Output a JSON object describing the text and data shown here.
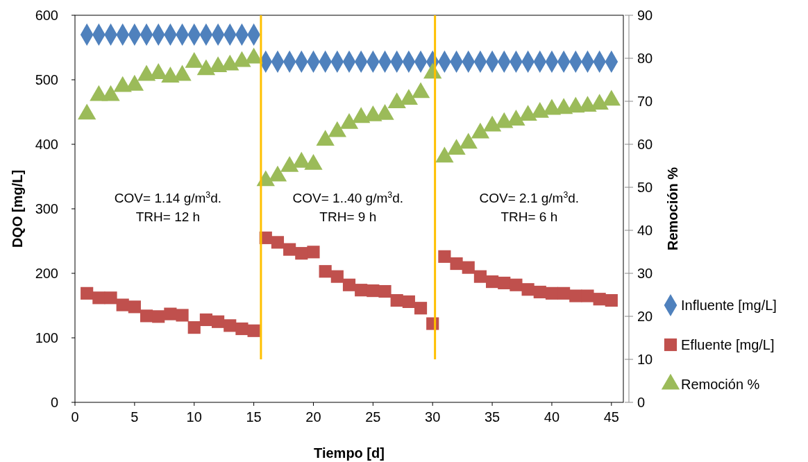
{
  "chart_data": {
    "type": "scatter",
    "xlabel": "Tiempo [d]",
    "ylabel": "DQO [mg/L]",
    "y2label": "Remoción %",
    "x": [
      1,
      2,
      3,
      4,
      5,
      6,
      7,
      8,
      9,
      10,
      11,
      12,
      13,
      14,
      15,
      16,
      17,
      18,
      19,
      20,
      21,
      22,
      23,
      24,
      25,
      26,
      27,
      28,
      29,
      30,
      31,
      32,
      33,
      34,
      35,
      36,
      37,
      38,
      39,
      40,
      41,
      42,
      43,
      44,
      45
    ],
    "series": [
      {
        "name": "Influente [mg/L]",
        "color": "#4f81bd",
        "marker": "diamond",
        "values": [
          570,
          570,
          570,
          570,
          570,
          570,
          570,
          570,
          570,
          570,
          570,
          570,
          570,
          570,
          570,
          528,
          528,
          528,
          528,
          528,
          528,
          528,
          528,
          528,
          528,
          528,
          528,
          528,
          528,
          528,
          528,
          528,
          528,
          528,
          528,
          528,
          528,
          528,
          528,
          528,
          528,
          528,
          528,
          528,
          528
        ]
      },
      {
        "name": "Efluente [mg/L]",
        "color": "#c0504d",
        "marker": "square",
        "values": [
          169,
          162,
          162,
          151,
          148,
          134,
          133,
          137,
          135,
          116,
          128,
          125,
          119,
          114,
          111,
          255,
          248,
          237,
          231,
          233,
          203,
          195,
          182,
          174,
          173,
          172,
          158,
          156,
          146,
          122,
          226,
          215,
          209,
          195,
          187,
          185,
          182,
          175,
          171,
          169,
          169,
          165,
          165,
          160,
          158
        ]
      },
      {
        "name": "Remoción %",
        "color": "#9bbb59",
        "marker": "triangle",
        "axis": "y2",
        "values": [
          67,
          71.3,
          71.3,
          73.4,
          73.7,
          76,
          76.4,
          75.6,
          76,
          79,
          77.3,
          78,
          78.4,
          79.2,
          80,
          51.5,
          52.6,
          54.8,
          55.8,
          55.3,
          60.9,
          62.9,
          64.8,
          66.2,
          66.6,
          66.9,
          69.6,
          70.4,
          72,
          76.5,
          57,
          58.8,
          60.2,
          62.6,
          64.2,
          65,
          65.6,
          66.7,
          67.4,
          68.1,
          68.3,
          68.6,
          68.8,
          69.3,
          70.2
        ]
      }
    ],
    "xlim": [
      0,
      46
    ],
    "xticks": [
      0,
      5,
      10,
      15,
      20,
      25,
      30,
      35,
      40,
      45
    ],
    "ylim": [
      0,
      600
    ],
    "yticks": [
      0,
      100,
      200,
      300,
      400,
      500,
      600
    ],
    "y2lim": [
      0,
      90
    ],
    "y2ticks": [
      0,
      10,
      20,
      30,
      40,
      50,
      60,
      70,
      80,
      90
    ],
    "ref_lines": [
      {
        "axis": "x",
        "value": 15.6,
        "color": "#ffc000"
      },
      {
        "axis": "x",
        "value": 30.2,
        "color": "#ffc000"
      }
    ],
    "annotations": [
      "COV= 1.14 g/m$^{3}$d.\nTRH=  12 h",
      "COV= 1..40 g/m$^{3}$d.\nTRH=  9 h",
      "COV= 2.1 g/m$^{3}$d.\nTRH=  6 h"
    ],
    "legend": "right",
    "grid": false
  }
}
